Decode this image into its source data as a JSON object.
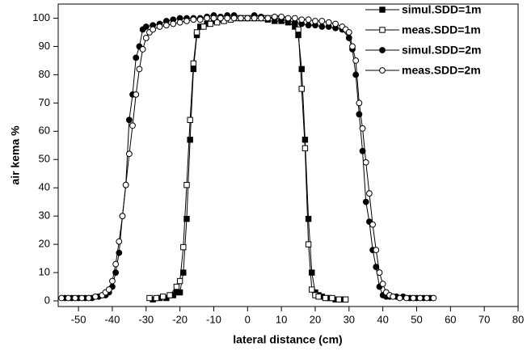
{
  "chart_data": {
    "type": "line",
    "xlabel": "lateral distance (cm)",
    "ylabel": "air kema %",
    "xlim": [
      -56,
      80
    ],
    "ylim": [
      -2,
      105
    ],
    "xticks": [
      -50,
      -40,
      -30,
      -20,
      -10,
      0,
      10,
      20,
      30,
      40,
      50,
      60,
      70,
      80
    ],
    "yticks": [
      0,
      10,
      20,
      30,
      40,
      50,
      60,
      70,
      80,
      90,
      100
    ],
    "legend": "upper right",
    "series": [
      {
        "name": "simul.SDD=1m",
        "color": "#000000",
        "marker": "square",
        "filled": true,
        "x": [
          -28,
          -26,
          -24,
          -22,
          -21,
          -20,
          -19,
          -18,
          -17,
          -16,
          -15,
          -14,
          -12,
          -10,
          -8,
          -6,
          -4,
          -2,
          0,
          2,
          4,
          6,
          8,
          10,
          12,
          14,
          15,
          16,
          17,
          18,
          19,
          20,
          21,
          22,
          24,
          26,
          28
        ],
        "values": [
          0.5,
          1,
          1,
          2,
          3,
          3,
          10,
          29,
          57,
          82,
          94,
          97,
          98,
          99,
          99.5,
          100,
          100,
          100,
          100,
          100,
          100,
          99.5,
          99,
          99,
          98.5,
          97,
          94,
          82,
          57,
          29,
          10,
          3,
          2,
          1.5,
          1,
          0.5,
          0.5
        ]
      },
      {
        "name": "meas.SDD=1m",
        "color": "#000000",
        "marker": "square",
        "filled": false,
        "x": [
          -29,
          -27,
          -25,
          -23,
          -21,
          -20,
          -19,
          -18,
          -17,
          -16,
          -15,
          -13,
          -11,
          -9,
          -7,
          -5,
          -3,
          -1,
          1,
          3,
          5,
          7,
          9,
          11,
          13,
          15,
          16,
          17,
          18,
          19,
          20,
          21,
          23,
          25,
          27,
          29
        ],
        "values": [
          1,
          1,
          1.5,
          2,
          5,
          7,
          19,
          41,
          64,
          84,
          95,
          97,
          98,
          98.5,
          99,
          99.5,
          100,
          100,
          100,
          100,
          100,
          100,
          100,
          99.5,
          99,
          96,
          75,
          54,
          20,
          4,
          2,
          1.5,
          1,
          1,
          0.5,
          0.5
        ]
      },
      {
        "name": "simul.SDD=2m",
        "color": "#000000",
        "marker": "circle",
        "filled": true,
        "x": [
          -54,
          -52,
          -50,
          -48,
          -46,
          -44,
          -42,
          -41,
          -40,
          -39,
          -38,
          -37,
          -36,
          -35,
          -34,
          -33,
          -32,
          -31,
          -30,
          -28,
          -26,
          -24,
          -22,
          -20,
          -18,
          -16,
          -14,
          -12,
          -10,
          -8,
          -6,
          -4,
          -2,
          0,
          2,
          4,
          6,
          8,
          10,
          12,
          14,
          16,
          18,
          20,
          22,
          24,
          26,
          28,
          30,
          31,
          32,
          33,
          34,
          35,
          36,
          37,
          38,
          39,
          40,
          41,
          42,
          44,
          46,
          48,
          50,
          52,
          54
        ],
        "values": [
          1,
          1,
          1,
          1,
          1,
          1.5,
          2,
          3,
          5,
          10,
          17,
          30,
          41,
          64,
          73,
          86,
          90,
          96,
          97,
          97.5,
          98,
          99,
          99.5,
          100,
          100,
          100,
          100,
          100.5,
          101,
          100.5,
          101,
          101,
          100,
          100,
          101,
          100.5,
          100,
          100,
          99.5,
          99,
          98.5,
          98,
          97.5,
          97.5,
          97,
          97,
          96.5,
          96,
          93,
          89,
          80,
          66,
          53,
          35,
          28,
          18,
          12,
          5,
          2,
          1.5,
          1.5,
          1.5,
          1.5,
          1,
          1,
          1,
          1
        ]
      },
      {
        "name": "meas.SDD=2m",
        "color": "#000000",
        "marker": "circle",
        "filled": false,
        "x": [
          -55,
          -53,
          -51,
          -49,
          -47,
          -45,
          -43,
          -42,
          -41,
          -40,
          -39,
          -38,
          -37,
          -36,
          -35,
          -34,
          -33,
          -32,
          -31,
          -30,
          -29,
          -28,
          -26,
          -24,
          -22,
          -20,
          -18,
          -16,
          -14,
          -12,
          -10,
          -8,
          -6,
          -4,
          -2,
          0,
          2,
          4,
          6,
          8,
          10,
          12,
          14,
          16,
          18,
          20,
          22,
          24,
          26,
          28,
          29,
          30,
          31,
          32,
          33,
          34,
          35,
          36,
          37,
          38,
          39,
          40,
          41,
          42,
          43,
          45,
          47,
          49,
          51,
          53,
          55
        ],
        "values": [
          1,
          1,
          1,
          1,
          1,
          1.5,
          2,
          3,
          4,
          7,
          13,
          21,
          30,
          41,
          52,
          62,
          73,
          82,
          89,
          93,
          95,
          96,
          97,
          97.5,
          98,
          98.5,
          99,
          99.5,
          99.5,
          100,
          100,
          100,
          100,
          100,
          100,
          100,
          100,
          100,
          100,
          100.5,
          100.5,
          100,
          100,
          99.5,
          99.5,
          99,
          99,
          98.5,
          98,
          97,
          96,
          95,
          90,
          85,
          70,
          61,
          49,
          38,
          27,
          18,
          10,
          6,
          3,
          2,
          1.5,
          1,
          1,
          1,
          1,
          1,
          1
        ]
      }
    ]
  }
}
